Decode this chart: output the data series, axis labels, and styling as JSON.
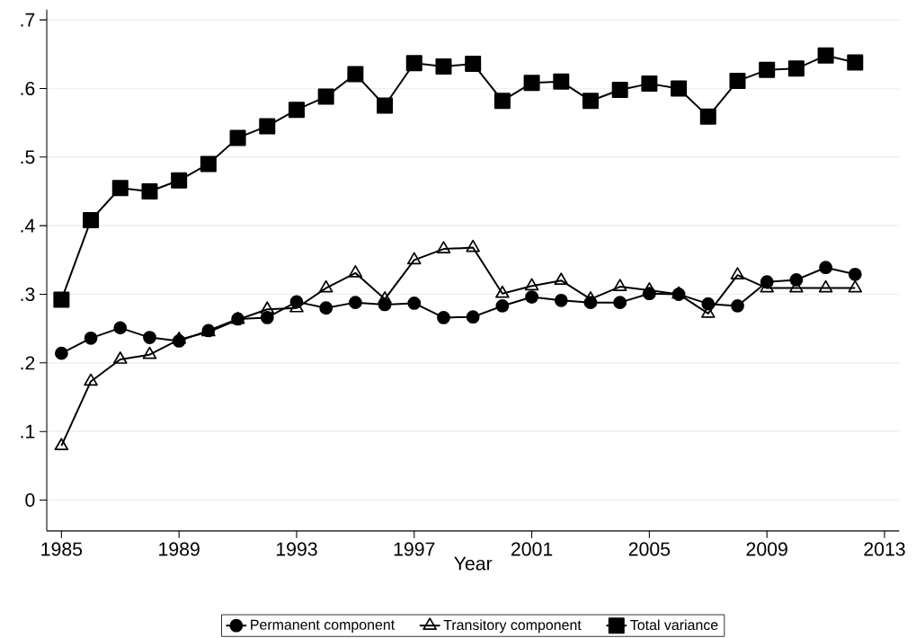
{
  "chart_data": {
    "type": "line",
    "xlabel": "Year",
    "x": [
      1985,
      1986,
      1987,
      1988,
      1989,
      1990,
      1991,
      1992,
      1993,
      1994,
      1995,
      1996,
      1997,
      1998,
      1999,
      2000,
      2001,
      2002,
      2003,
      2004,
      2005,
      2006,
      2007,
      2008,
      2009,
      2010,
      2011,
      2012
    ],
    "series": [
      {
        "name": "Permanent component",
        "color": "#000000",
        "marker": "circle",
        "values": [
          0.214,
          0.236,
          0.251,
          0.237,
          0.232,
          0.247,
          0.264,
          0.266,
          0.289,
          0.28,
          0.288,
          0.285,
          0.287,
          0.266,
          0.267,
          0.283,
          0.296,
          0.291,
          0.288,
          0.288,
          0.301,
          0.3,
          0.286,
          0.283,
          0.318,
          0.321,
          0.339,
          0.329
        ]
      },
      {
        "name": "Transitory component",
        "color": "#000000",
        "marker": "triangle",
        "values": [
          0.079,
          0.173,
          0.205,
          0.212,
          0.234,
          0.245,
          0.263,
          0.278,
          0.28,
          0.309,
          0.331,
          0.293,
          0.35,
          0.366,
          0.368,
          0.301,
          0.312,
          0.32,
          0.293,
          0.311,
          0.306,
          0.3,
          0.272,
          0.328,
          0.309,
          0.309,
          0.309,
          0.309
        ]
      },
      {
        "name": "Total variance",
        "color": "#000000",
        "marker": "square",
        "values": [
          0.292,
          0.408,
          0.455,
          0.45,
          0.466,
          0.49,
          0.528,
          0.545,
          0.569,
          0.588,
          0.621,
          0.575,
          0.637,
          0.632,
          0.636,
          0.582,
          0.608,
          0.61,
          0.582,
          0.598,
          0.607,
          0.6,
          0.559,
          0.611,
          0.627,
          0.629,
          0.648,
          0.638
        ]
      }
    ],
    "xlim": [
      1984.5,
      2013.5
    ],
    "ylim": [
      -0.045,
      0.715
    ],
    "xticks": [
      1985,
      1989,
      1993,
      1997,
      2001,
      2005,
      2009,
      2013
    ],
    "yticks": [
      0,
      {
        "value": 0.1,
        "label": ".1"
      },
      {
        "value": 0.2,
        "label": ".2"
      },
      {
        "value": 0.3,
        "label": ".3"
      },
      {
        "value": 0.4,
        "label": ".4"
      },
      {
        "value": 0.5,
        "label": ".5"
      },
      {
        "value": 0.6,
        "label": ".6"
      },
      {
        "value": 0.7,
        "label": ".7"
      }
    ],
    "grid": "y",
    "legend": "bottom",
    "line_style": "solid"
  }
}
